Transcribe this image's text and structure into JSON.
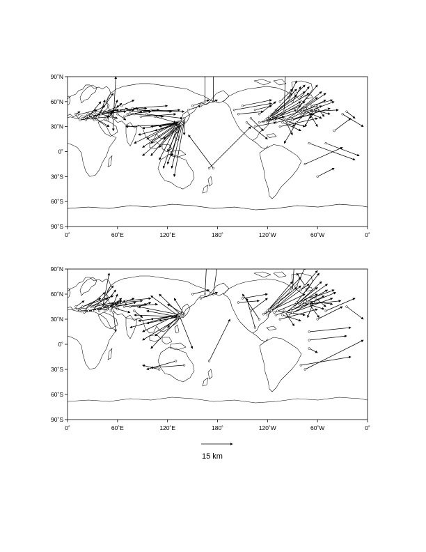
{
  "panels": [
    {
      "id": "top",
      "x_ticks": [
        {
          "lon": 0,
          "label": "0˚"
        },
        {
          "lon": 60,
          "label": "60˚E"
        },
        {
          "lon": 120,
          "label": "120˚E"
        },
        {
          "lon": 180,
          "label": "180˚"
        },
        {
          "lon": 240,
          "label": "120˚W"
        },
        {
          "lon": 300,
          "label": "60˚W"
        },
        {
          "lon": 360,
          "label": "0˚"
        }
      ],
      "y_ticks": [
        {
          "lat": 90,
          "label": "90˚N"
        },
        {
          "lat": 60,
          "label": "60˚N"
        },
        {
          "lat": 30,
          "label": "30˚N"
        },
        {
          "lat": 0,
          "label": "0˚"
        },
        {
          "lat": -30,
          "label": "30˚S"
        },
        {
          "lat": -60,
          "label": "60˚S"
        },
        {
          "lat": -90,
          "label": "90˚S"
        }
      ],
      "vectors": [
        [
          10,
          45,
          15,
          48
        ],
        [
          12,
          44,
          35,
          50
        ],
        [
          15,
          38,
          50,
          42
        ],
        [
          18,
          40,
          45,
          55
        ],
        [
          20,
          40,
          60,
          50
        ],
        [
          22,
          38,
          40,
          60
        ],
        [
          25,
          42,
          55,
          48
        ],
        [
          28,
          40,
          62,
          55
        ],
        [
          30,
          42,
          50,
          30
        ],
        [
          32,
          38,
          55,
          70
        ],
        [
          35,
          45,
          70,
          48
        ],
        [
          38,
          42,
          45,
          62
        ],
        [
          40,
          45,
          60,
          40
        ],
        [
          42,
          48,
          62,
          50
        ],
        [
          45,
          40,
          65,
          58
        ],
        [
          48,
          38,
          55,
          50
        ],
        [
          50,
          45,
          72,
          52
        ],
        [
          52,
          42,
          60,
          62
        ],
        [
          55,
          40,
          58,
          90
        ],
        [
          55,
          40,
          55,
          25
        ],
        [
          58,
          48,
          80,
          50
        ],
        [
          60,
          45,
          70,
          38
        ],
        [
          62,
          50,
          85,
          52
        ],
        [
          65,
          55,
          80,
          62
        ],
        [
          68,
          42,
          90,
          48
        ],
        [
          70,
          50,
          95,
          52
        ],
        [
          72,
          45,
          100,
          48
        ],
        [
          75,
          48,
          110,
          50
        ],
        [
          78,
          52,
          120,
          55
        ],
        [
          80,
          45,
          115,
          42
        ],
        [
          85,
          50,
          125,
          48
        ],
        [
          88,
          42,
          130,
          45
        ],
        [
          90,
          48,
          135,
          50
        ],
        [
          95,
          45,
          138,
          40
        ],
        [
          100,
          50,
          140,
          48
        ],
        [
          105,
          42,
          130,
          35
        ],
        [
          130,
          35,
          80,
          10
        ],
        [
          132,
          34,
          90,
          5
        ],
        [
          133,
          36,
          95,
          15
        ],
        [
          134,
          33,
          85,
          20
        ],
        [
          135,
          35,
          100,
          10
        ],
        [
          136,
          34,
          110,
          5
        ],
        [
          137,
          36,
          105,
          25
        ],
        [
          138,
          34,
          115,
          15
        ],
        [
          135,
          32,
          120,
          0
        ],
        [
          134,
          35,
          100,
          -5
        ],
        [
          132,
          33,
          110,
          -10
        ],
        [
          136,
          35,
          125,
          -5
        ],
        [
          138,
          37,
          120,
          -15
        ],
        [
          140,
          36,
          128,
          -30
        ],
        [
          133,
          34,
          115,
          -20
        ],
        [
          135,
          36,
          100,
          30
        ],
        [
          134,
          35,
          90,
          28
        ],
        [
          136,
          33,
          70,
          30
        ],
        [
          137,
          35,
          110,
          30
        ],
        [
          138,
          34,
          125,
          -20
        ],
        [
          130,
          30,
          90,
          -5
        ],
        [
          140,
          40,
          140,
          20
        ],
        [
          145,
          50,
          160,
          55
        ],
        [
          150,
          55,
          170,
          62
        ],
        [
          165,
          60,
          165,
          92
        ],
        [
          175,
          60,
          175,
          100
        ],
        [
          160,
          55,
          180,
          62
        ],
        [
          170,
          -20,
          220,
          30
        ],
        [
          175,
          -20,
          145,
          20
        ],
        [
          260,
          50,
          262,
          108
        ],
        [
          255,
          60,
          270,
          75
        ],
        [
          265,
          65,
          275,
          85
        ],
        [
          270,
          60,
          280,
          78
        ],
        [
          275,
          70,
          285,
          80
        ],
        [
          280,
          65,
          290,
          78
        ],
        [
          250,
          50,
          275,
          75
        ],
        [
          245,
          45,
          270,
          70
        ],
        [
          240,
          40,
          275,
          68
        ],
        [
          240,
          35,
          285,
          60
        ],
        [
          238,
          38,
          280,
          55
        ],
        [
          235,
          36,
          275,
          50
        ],
        [
          240,
          40,
          290,
          70
        ],
        [
          242,
          42,
          285,
          72
        ],
        [
          245,
          40,
          280,
          60
        ],
        [
          248,
          38,
          300,
          55
        ],
        [
          250,
          35,
          295,
          45
        ],
        [
          252,
          40,
          285,
          30
        ],
        [
          255,
          30,
          300,
          40
        ],
        [
          258,
          35,
          280,
          25
        ],
        [
          260,
          40,
          270,
          20
        ],
        [
          262,
          38,
          300,
          65
        ],
        [
          265,
          35,
          305,
          55
        ],
        [
          268,
          40,
          310,
          62
        ],
        [
          270,
          38,
          315,
          52
        ],
        [
          272,
          45,
          305,
          72
        ],
        [
          275,
          50,
          300,
          80
        ],
        [
          278,
          48,
          310,
          70
        ],
        [
          280,
          45,
          320,
          60
        ],
        [
          282,
          50,
          305,
          40
        ],
        [
          285,
          55,
          300,
          30
        ],
        [
          288,
          52,
          315,
          45
        ],
        [
          290,
          48,
          325,
          50
        ],
        [
          292,
          55,
          318,
          62
        ],
        [
          295,
          50,
          285,
          30
        ],
        [
          298,
          55,
          308,
          42
        ],
        [
          300,
          50,
          290,
          40
        ],
        [
          285,
          45,
          270,
          30
        ],
        [
          275,
          35,
          260,
          10
        ],
        [
          230,
          35,
          260,
          42
        ],
        [
          225,
          30,
          250,
          35
        ],
        [
          220,
          40,
          235,
          25
        ],
        [
          215,
          35,
          240,
          15
        ],
        [
          230,
          45,
          250,
          60
        ],
        [
          225,
          50,
          245,
          55
        ],
        [
          200,
          50,
          245,
          58
        ],
        [
          205,
          45,
          235,
          48
        ],
        [
          210,
          55,
          245,
          62
        ],
        [
          290,
          10,
          345,
          -10
        ],
        [
          285,
          -15,
          330,
          5
        ],
        [
          300,
          -30,
          320,
          -20
        ],
        [
          310,
          10,
          350,
          -5
        ],
        [
          320,
          25,
          340,
          40
        ],
        [
          330,
          45,
          355,
          30
        ],
        [
          335,
          48,
          345,
          40
        ]
      ]
    },
    {
      "id": "bottom",
      "x_ticks": [
        {
          "lon": 0,
          "label": "0˚"
        },
        {
          "lon": 60,
          "label": "60˚E"
        },
        {
          "lon": 120,
          "label": "120˚E"
        },
        {
          "lon": 180,
          "label": "180˚"
        },
        {
          "lon": 240,
          "label": "120˚W"
        },
        {
          "lon": 300,
          "label": "60˚W"
        },
        {
          "lon": 360,
          "label": "0˚"
        }
      ],
      "y_ticks": [
        {
          "lat": 90,
          "label": "90˚N"
        },
        {
          "lat": 60,
          "label": "60˚N"
        },
        {
          "lat": 30,
          "label": "30˚N"
        },
        {
          "lat": 0,
          "label": "0˚"
        },
        {
          "lat": -30,
          "label": "30˚S"
        },
        {
          "lat": -60,
          "label": "60˚S"
        },
        {
          "lat": -90,
          "label": "90˚S"
        }
      ],
      "vectors": [
        [
          10,
          45,
          20,
          52
        ],
        [
          12,
          42,
          40,
          55
        ],
        [
          15,
          40,
          50,
          42
        ],
        [
          18,
          45,
          55,
          58
        ],
        [
          20,
          38,
          60,
          48
        ],
        [
          22,
          42,
          45,
          62
        ],
        [
          25,
          40,
          62,
          50
        ],
        [
          28,
          45,
          48,
          55
        ],
        [
          30,
          40,
          55,
          70
        ],
        [
          32,
          45,
          65,
          52
        ],
        [
          35,
          42,
          72,
          48
        ],
        [
          38,
          40,
          58,
          65
        ],
        [
          40,
          48,
          62,
          42
        ],
        [
          42,
          44,
          50,
          85
        ],
        [
          45,
          40,
          65,
          55
        ],
        [
          48,
          42,
          55,
          50
        ],
        [
          50,
          45,
          70,
          52
        ],
        [
          52,
          40,
          60,
          60
        ],
        [
          55,
          38,
          58,
          15
        ],
        [
          58,
          45,
          82,
          50
        ],
        [
          60,
          42,
          75,
          38
        ],
        [
          62,
          48,
          80,
          55
        ],
        [
          65,
          50,
          90,
          52
        ],
        [
          68,
          45,
          95,
          48
        ],
        [
          70,
          52,
          100,
          55
        ],
        [
          75,
          45,
          108,
          48
        ],
        [
          80,
          40,
          90,
          32
        ],
        [
          85,
          45,
          100,
          50
        ],
        [
          130,
          35,
          75,
          20
        ],
        [
          132,
          34,
          85,
          28
        ],
        [
          133,
          36,
          90,
          15
        ],
        [
          134,
          33,
          95,
          25
        ],
        [
          135,
          35,
          100,
          30
        ],
        [
          136,
          34,
          110,
          28
        ],
        [
          137,
          36,
          105,
          10
        ],
        [
          138,
          34,
          90,
          5
        ],
        [
          135,
          32,
          100,
          -5
        ],
        [
          134,
          35,
          120,
          20
        ],
        [
          132,
          33,
          95,
          40
        ],
        [
          136,
          35,
          85,
          45
        ],
        [
          138,
          37,
          120,
          48
        ],
        [
          140,
          36,
          128,
          55
        ],
        [
          133,
          34,
          100,
          58
        ],
        [
          135,
          36,
          110,
          60
        ],
        [
          134,
          35,
          150,
          -5
        ],
        [
          136,
          33,
          80,
          35
        ],
        [
          110,
          -30,
          90,
          -25
        ],
        [
          130,
          -20,
          95,
          -30
        ],
        [
          140,
          -25,
          100,
          -28
        ],
        [
          150,
          60,
          170,
          65
        ],
        [
          165,
          60,
          167,
          100
        ],
        [
          175,
          60,
          182,
          110
        ],
        [
          160,
          55,
          180,
          62
        ],
        [
          170,
          -20,
          195,
          30
        ],
        [
          230,
          30,
          210,
          60
        ],
        [
          225,
          20,
          215,
          55
        ],
        [
          220,
          40,
          240,
          55
        ],
        [
          240,
          35,
          280,
          70
        ],
        [
          238,
          38,
          275,
          68
        ],
        [
          235,
          36,
          285,
          60
        ],
        [
          240,
          40,
          270,
          75
        ],
        [
          242,
          42,
          280,
          80
        ],
        [
          245,
          40,
          290,
          72
        ],
        [
          248,
          38,
          300,
          60
        ],
        [
          250,
          35,
          295,
          50
        ],
        [
          252,
          40,
          285,
          35
        ],
        [
          255,
          30,
          300,
          42
        ],
        [
          258,
          35,
          280,
          28
        ],
        [
          260,
          40,
          272,
          22
        ],
        [
          262,
          38,
          300,
          68
        ],
        [
          265,
          35,
          308,
          58
        ],
        [
          268,
          40,
          312,
          65
        ],
        [
          270,
          38,
          318,
          55
        ],
        [
          272,
          45,
          305,
          75
        ],
        [
          275,
          50,
          302,
          85
        ],
        [
          278,
          48,
          312,
          72
        ],
        [
          280,
          45,
          322,
          62
        ],
        [
          282,
          50,
          308,
          42
        ],
        [
          285,
          55,
          302,
          32
        ],
        [
          288,
          52,
          318,
          48
        ],
        [
          290,
          48,
          328,
          52
        ],
        [
          292,
          55,
          320,
          65
        ],
        [
          295,
          50,
          288,
          32
        ],
        [
          298,
          55,
          310,
          45
        ],
        [
          270,
          65,
          272,
          95
        ],
        [
          275,
          70,
          285,
          92
        ],
        [
          280,
          65,
          300,
          88
        ],
        [
          285,
          70,
          275,
          85
        ],
        [
          290,
          -5,
          300,
          -10
        ],
        [
          285,
          -30,
          355,
          5
        ],
        [
          280,
          -25,
          340,
          -15
        ],
        [
          300,
          30,
          330,
          45
        ],
        [
          310,
          40,
          345,
          55
        ],
        [
          335,
          45,
          355,
          30
        ],
        [
          210,
          55,
          240,
          60
        ],
        [
          205,
          50,
          230,
          52
        ],
        [
          290,
          15,
          340,
          20
        ],
        [
          290,
          5,
          335,
          10
        ]
      ]
    }
  ],
  "scale_bar": {
    "label": "15 km"
  }
}
